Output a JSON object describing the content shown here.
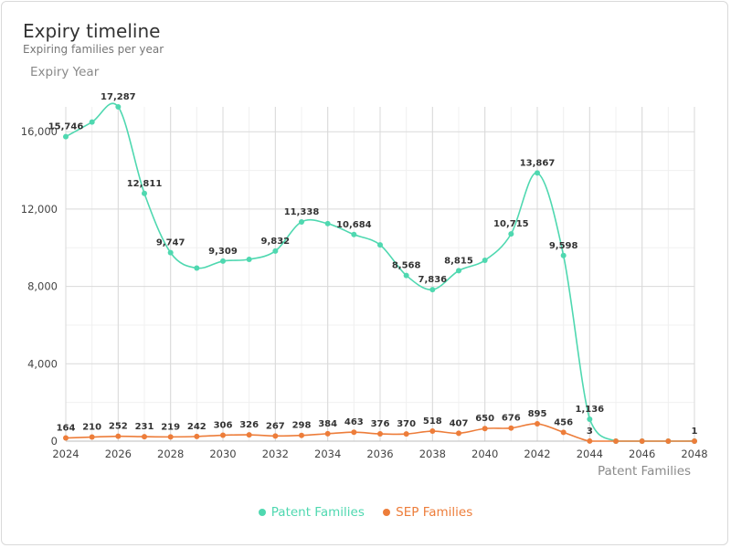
{
  "colors": {
    "patent": "#4fd8b0",
    "sep": "#ed7d3a",
    "grid_major": "#d9d9d9",
    "grid_minor": "#f0f0f0",
    "axis_text": "#444444"
  },
  "chart_data": {
    "type": "line",
    "title": "Expiry timeline",
    "subtitle": "Expiring families per year",
    "ylabel": "Expiry Year",
    "xlabel": "Patent Families",
    "x": [
      2024,
      2025,
      2026,
      2027,
      2028,
      2029,
      2030,
      2031,
      2032,
      2033,
      2034,
      2035,
      2036,
      2037,
      2038,
      2039,
      2040,
      2041,
      2042,
      2043,
      2044,
      2045,
      2046,
      2047,
      2048
    ],
    "xticks": [
      2024,
      2026,
      2028,
      2030,
      2032,
      2034,
      2036,
      2038,
      2040,
      2042,
      2044,
      2046,
      2048
    ],
    "xtick_labels": [
      "2024",
      "2026",
      "2028",
      "2030",
      "2032",
      "2034",
      "2036",
      "2038",
      "2040",
      "2042",
      "2044",
      "2046",
      "2048"
    ],
    "yticks": [
      0,
      4000,
      8000,
      12000,
      16000
    ],
    "ytick_labels": [
      "0",
      "4,000",
      "8,000",
      "12,000",
      "16,000"
    ],
    "ylim": [
      0,
      17287
    ],
    "xlim": [
      2024,
      2048
    ],
    "grid": true,
    "legend_position": "bottom",
    "series": [
      {
        "name": "Patent Families",
        "color": "#4fd8b0",
        "values": [
          15746,
          16500,
          17287,
          12811,
          9747,
          8950,
          9309,
          9400,
          9832,
          11338,
          11250,
          10684,
          10150,
          8568,
          7836,
          8815,
          9350,
          10715,
          13867,
          9598,
          1136,
          0,
          0,
          0,
          1
        ],
        "labels": [
          "15,746",
          "",
          "17,287",
          "12,811",
          "9,747",
          "",
          "9,309",
          "",
          "9,832",
          "11,338",
          "",
          "10,684",
          "",
          "8,568",
          "7,836",
          "8,815",
          "",
          "10,715",
          "13,867",
          "9,598",
          "1,136",
          "",
          "",
          "",
          "1"
        ]
      },
      {
        "name": "SEP Families",
        "color": "#ed7d3a",
        "values": [
          164,
          210,
          252,
          231,
          219,
          242,
          306,
          326,
          267,
          298,
          384,
          463,
          376,
          370,
          518,
          407,
          650,
          676,
          895,
          456,
          3,
          0,
          0,
          0,
          0
        ],
        "labels": [
          "164",
          "210",
          "252",
          "231",
          "219",
          "242",
          "306",
          "326",
          "267",
          "298",
          "384",
          "463",
          "376",
          "370",
          "518",
          "407",
          "650",
          "676",
          "895",
          "456",
          "3",
          "",
          "",
          "",
          ""
        ]
      }
    ]
  }
}
